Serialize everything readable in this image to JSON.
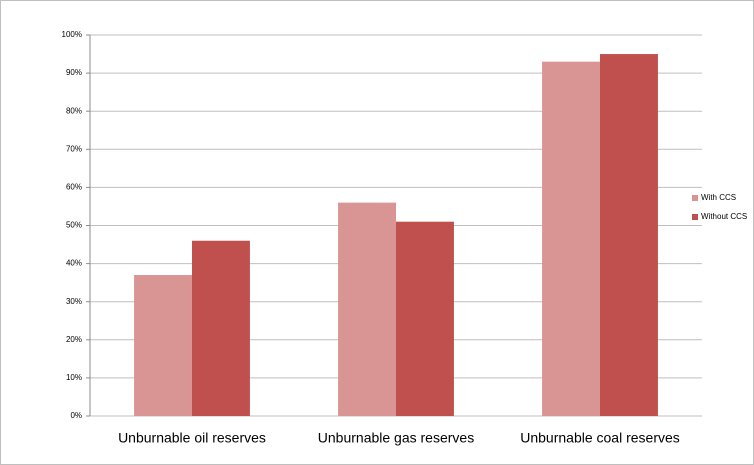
{
  "chart_data": {
    "type": "bar",
    "categories": [
      "Unburnable oil reserves",
      "Unburnable gas reserves",
      "Unburnable coal reserves"
    ],
    "series": [
      {
        "name": "With CCS",
        "color": "#d99594",
        "values": [
          37,
          56,
          93
        ]
      },
      {
        "name": "Without CCS",
        "color": "#c0504d",
        "values": [
          46,
          51,
          95
        ]
      }
    ],
    "ylim": [
      0,
      100
    ],
    "yticks": [
      {
        "value": 0,
        "label": "0%"
      },
      {
        "value": 10,
        "label": "10%"
      },
      {
        "value": 20,
        "label": "20%"
      },
      {
        "value": 30,
        "label": "30%"
      },
      {
        "value": 40,
        "label": "40%"
      },
      {
        "value": 50,
        "label": "50%"
      },
      {
        "value": 60,
        "label": "60%"
      },
      {
        "value": 70,
        "label": "70%"
      },
      {
        "value": 80,
        "label": "80%"
      },
      {
        "value": 90,
        "label": "90%"
      },
      {
        "value": 100,
        "label": "100%"
      }
    ],
    "grid": true,
    "legend": "right"
  }
}
